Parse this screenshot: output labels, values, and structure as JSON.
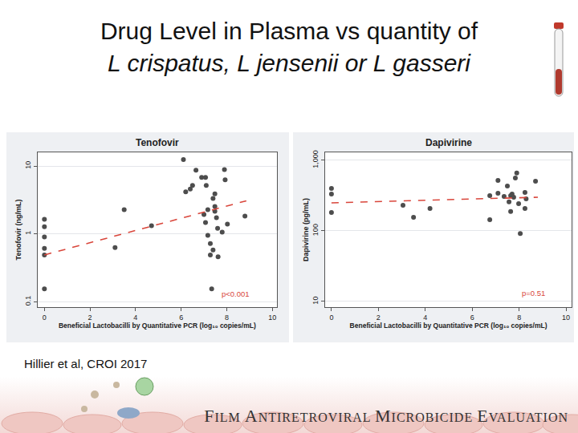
{
  "title": [
    "Drug Level in Plasma vs quantity of",
    "L crispatus, L jensenii or L gasseri"
  ],
  "citation": "Hillier et al, CROI 2017",
  "footer": "FILM ANTIRETROVIRAL MICROBICIDE EVALUATION",
  "chart_data": [
    {
      "type": "scatter",
      "title": "Tenofovir",
      "x_label": "Beneficial Lactobacilli by Quantitative PCR (log₁₀ copies/mL)",
      "y_label": "Tenofovir (ng/mL)",
      "log": "y",
      "grid": true,
      "xlim": [
        -0.3,
        10.2
      ],
      "xticks": [
        0,
        2,
        4,
        6,
        8,
        10
      ],
      "ylim": [
        0.083,
        16
      ],
      "yticks": [
        0.1,
        1,
        10
      ],
      "series": [
        {
          "type": "scatter",
          "color": "#4d4d4d",
          "marker": "circle",
          "x": [
            0,
            0,
            0,
            0,
            0,
            0,
            3.1,
            3.5,
            4.7,
            6.1,
            6.2,
            6.4,
            6.5,
            6.65,
            6.9,
            7.07,
            7.0,
            7.1,
            7.07,
            7.17,
            7.17,
            7.28,
            7.28,
            7.34,
            7.4,
            7.48,
            7.48,
            7.48,
            7.55,
            7.6,
            7.62,
            7.4,
            7.9,
            7.93,
            8.03,
            7.8,
            8.8
          ],
          "values": [
            1.64,
            1.28,
            0.9,
            0.61,
            0.49,
            0.155,
            0.63,
            2.28,
            1.32,
            12.5,
            4.16,
            4.6,
            5.2,
            8.7,
            6.8,
            6.8,
            1.93,
            5.2,
            1.47,
            0.95,
            2.28,
            0.72,
            0.49,
            0.155,
            3.34,
            3.9,
            2.54,
            2.15,
            1.73,
            1.21,
            0.46,
            0.58,
            8.9,
            6.3,
            1.39,
            1.06,
            1.83
          ]
        },
        {
          "type": "line",
          "color": "#d9463b",
          "line_style": "dashed",
          "x": [
            0,
            8.86
          ],
          "values": [
            0.49,
            3.08
          ]
        }
      ],
      "annotations": [
        {
          "text": "p<0.001",
          "x": 8.4,
          "y": 0.13,
          "color": "#d9463b"
        }
      ]
    },
    {
      "type": "scatter",
      "title": "Dapivirine",
      "x_label": "Beneficial Lactobacilli by Quantitative PCR (log₁₀ copies/mL)",
      "y_label": "Dapivirine (pg/mL)",
      "log": "y",
      "grid": true,
      "xlim": [
        -0.27,
        10.24
      ],
      "xticks": [
        0,
        2,
        4,
        6,
        8,
        10
      ],
      "ylim": [
        8.3,
        1300
      ],
      "yticks": [
        10,
        100,
        {
          "value": 1000,
          "label": "1,000"
        }
      ],
      "series": [
        {
          "type": "scatter",
          "color": "#4d4d4d",
          "marker": "circle",
          "x": [
            0,
            0,
            0,
            3.05,
            3.5,
            4.2,
            6.75,
            6.75,
            7.1,
            7.1,
            7.36,
            7.5,
            7.57,
            7.64,
            7.7,
            7.77,
            7.84,
            7.64,
            7.9,
            7.98,
            8.05,
            8.25,
            8.25,
            8.3,
            8.7
          ],
          "values": [
            400,
            333,
            182,
            231,
            156,
            208,
            144,
            316,
            342,
            519,
            308,
            433,
            257,
            316,
            333,
            300,
            562,
            188,
            660,
            243,
            92,
            208,
            350,
            285,
            506
          ]
        },
        {
          "type": "line",
          "color": "#d9463b",
          "line_style": "dashed",
          "x": [
            0,
            8.8
          ],
          "values": [
            250,
            300
          ]
        }
      ],
      "annotations": [
        {
          "text": "p=0.51",
          "x": 8.6,
          "y": 13,
          "color": "#d9463b"
        }
      ]
    }
  ]
}
